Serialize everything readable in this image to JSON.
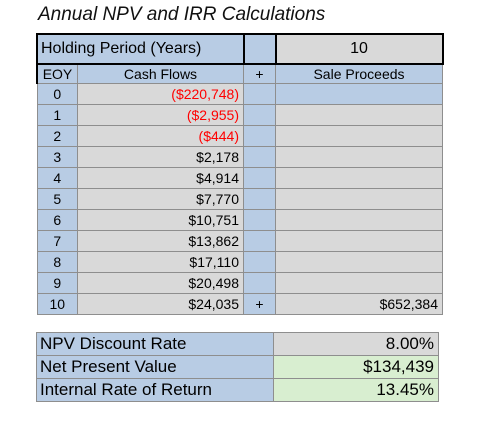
{
  "title": "Annual NPV and IRR Calculations",
  "holding": {
    "label": "Holding Period (Years)",
    "value": "10"
  },
  "headers": {
    "eoy": "EOY",
    "cash_flows": "Cash Flows",
    "plus": "+",
    "sale_proceeds": "Sale Proceeds"
  },
  "rows": [
    {
      "eoy": "0",
      "cf": "($220,748)",
      "negative": true,
      "plus": "",
      "sale": ""
    },
    {
      "eoy": "1",
      "cf": "($2,955)",
      "negative": true,
      "plus": "",
      "sale": ""
    },
    {
      "eoy": "2",
      "cf": "($444)",
      "negative": true,
      "plus": "",
      "sale": ""
    },
    {
      "eoy": "3",
      "cf": "$2,178",
      "negative": false,
      "plus": "",
      "sale": ""
    },
    {
      "eoy": "4",
      "cf": "$4,914",
      "negative": false,
      "plus": "",
      "sale": ""
    },
    {
      "eoy": "5",
      "cf": "$7,770",
      "negative": false,
      "plus": "",
      "sale": ""
    },
    {
      "eoy": "6",
      "cf": "$10,751",
      "negative": false,
      "plus": "",
      "sale": ""
    },
    {
      "eoy": "7",
      "cf": "$13,862",
      "negative": false,
      "plus": "",
      "sale": ""
    },
    {
      "eoy": "8",
      "cf": "$17,110",
      "negative": false,
      "plus": "",
      "sale": ""
    },
    {
      "eoy": "9",
      "cf": "$20,498",
      "negative": false,
      "plus": "",
      "sale": ""
    },
    {
      "eoy": "10",
      "cf": "$24,035",
      "negative": false,
      "plus": "+",
      "sale": "$652,384"
    }
  ],
  "summary": [
    {
      "label": "NPV Discount Rate",
      "value": "8.00%",
      "style": "gray"
    },
    {
      "label": "Net Present Value",
      "value": "$134,439",
      "style": "green"
    },
    {
      "label": "Internal Rate of Return",
      "value": "13.45%",
      "style": "green"
    }
  ],
  "colors": {
    "header_blue": "#b8cce4",
    "cell_gray": "#d9d9d9",
    "result_green": "#d8eed0",
    "negative_red": "#ff0000"
  }
}
